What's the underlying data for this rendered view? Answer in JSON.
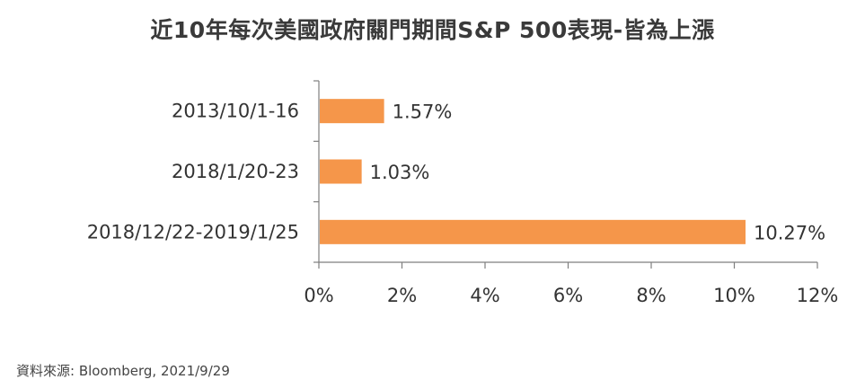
{
  "chart_data": {
    "type": "bar",
    "orientation": "horizontal",
    "title": "近10年每次美國政府關門期間S&P 500表現-皆為上漲",
    "categories": [
      "2013/10/1-16",
      "2018/1/20-23",
      "2018/12/22-2019/1/25"
    ],
    "values": [
      1.57,
      1.03,
      10.27
    ],
    "data_labels": [
      "1.57%",
      "1.03%",
      "10.27%"
    ],
    "xlim": [
      0,
      12
    ],
    "x_ticks": [
      0,
      2,
      4,
      6,
      8,
      10,
      12
    ],
    "x_tick_labels": [
      "0%",
      "2%",
      "4%",
      "6%",
      "8%",
      "10%",
      "12%"
    ],
    "xlabel": "",
    "ylabel": "",
    "grid": false,
    "legend": "none",
    "bar_color": "#f5964a",
    "axis_color": "#7f7f7f"
  },
  "source": "資料來源: Bloomberg, 2021/9/29"
}
